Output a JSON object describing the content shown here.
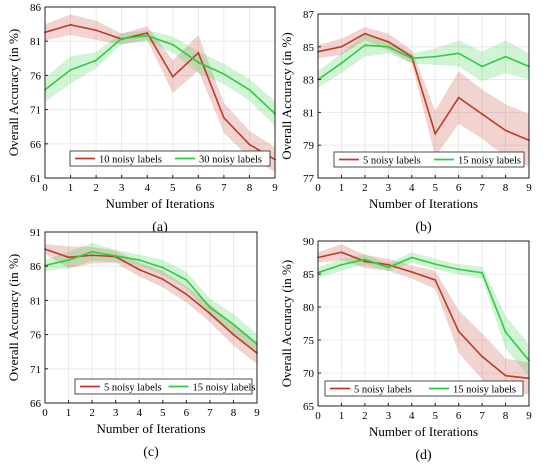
{
  "figure": {
    "ylabel": "Overall Accuracy (in %)",
    "xlabel": "Number of Iterations"
  },
  "chart_data": [
    {
      "type": "line",
      "label": "(a)",
      "xlabel": "Number of Iterations",
      "ylabel": "Overall Accuracy (in %)",
      "x": [
        0,
        1,
        2,
        3,
        4,
        5,
        6,
        7,
        8,
        9
      ],
      "xlim": [
        0,
        9
      ],
      "ylim": [
        61,
        86
      ],
      "yticks": [
        61,
        66,
        71,
        76,
        81,
        86
      ],
      "grid": true,
      "legend": "bottom",
      "series": [
        {
          "name": "10 noisy labels",
          "color": "#c0392b",
          "values": [
            82.3,
            83.4,
            82.6,
            81.3,
            82.2,
            75.8,
            79.3,
            69.8,
            65.9,
            63.7
          ],
          "band": [
            1.2,
            1.5,
            1.4,
            0.8,
            1.0,
            2.4,
            2.6,
            2.2,
            2.0,
            1.8
          ]
        },
        {
          "name": "30 noisy labels",
          "color": "#2ecc40",
          "values": [
            73.9,
            76.8,
            78.2,
            81.4,
            81.8,
            80.5,
            77.9,
            76.2,
            73.9,
            70.4
          ],
          "band": [
            1.8,
            2.0,
            1.2,
            0.8,
            0.8,
            1.2,
            1.6,
            1.5,
            1.6,
            1.8
          ]
        }
      ]
    },
    {
      "type": "line",
      "label": "(b)",
      "xlabel": "Number of Iterations",
      "ylabel": "Overall Accuracy (in %)",
      "x": [
        0,
        1,
        2,
        3,
        4,
        5,
        6,
        7,
        8,
        9
      ],
      "xlim": [
        0,
        9
      ],
      "ylim": [
        77,
        87
      ],
      "yticks": [
        77,
        79,
        81,
        83,
        85,
        87
      ],
      "grid": true,
      "legend": "bottom",
      "series": [
        {
          "name": "5 noisy labels",
          "color": "#c0392b",
          "values": [
            84.7,
            85.0,
            85.8,
            85.3,
            84.4,
            79.7,
            81.9,
            80.9,
            79.9,
            79.3
          ],
          "band": [
            0.4,
            0.5,
            0.4,
            0.5,
            0.4,
            1.4,
            1.6,
            1.5,
            1.6,
            1.6
          ]
        },
        {
          "name": "15 noisy labels",
          "color": "#2ecc40",
          "values": [
            83.0,
            84.0,
            85.1,
            85.0,
            84.3,
            84.4,
            84.6,
            83.8,
            84.4,
            83.8
          ],
          "band": [
            0.5,
            0.6,
            0.7,
            0.4,
            0.3,
            0.5,
            0.8,
            0.9,
            1.0,
            0.8
          ]
        }
      ]
    },
    {
      "type": "line",
      "label": "(c)",
      "xlabel": "Number of Iterations",
      "ylabel": "Overall Accuracy (in %)",
      "x": [
        0,
        1,
        2,
        3,
        4,
        5,
        6,
        7,
        8,
        9
      ],
      "xlim": [
        0,
        9
      ],
      "ylim": [
        66,
        91
      ],
      "yticks": [
        66,
        71,
        76,
        81,
        86,
        91
      ],
      "grid": true,
      "legend": "bottom",
      "series": [
        {
          "name": "5 noisy labels",
          "color": "#c0392b",
          "values": [
            88.5,
            87.3,
            87.6,
            87.4,
            85.5,
            84.1,
            81.9,
            79.1,
            76.0,
            73.3
          ],
          "band": [
            0.7,
            1.6,
            1.2,
            0.9,
            1.0,
            1.2,
            1.2,
            1.3,
            1.6,
            1.6
          ]
        },
        {
          "name": "15 noisy labels",
          "color": "#2ecc40",
          "values": [
            86.1,
            86.9,
            88.1,
            87.5,
            86.9,
            85.8,
            84.0,
            80.0,
            77.5,
            74.6
          ],
          "band": [
            0.8,
            1.2,
            1.3,
            0.9,
            0.8,
            1.1,
            1.2,
            1.3,
            1.5,
            1.5
          ]
        }
      ]
    },
    {
      "type": "line",
      "label": "(d)",
      "xlabel": "Number of Iterations",
      "ylabel": "Overall Accuracy (in %)",
      "x": [
        0,
        1,
        2,
        3,
        4,
        5,
        6,
        7,
        8,
        9
      ],
      "xlim": [
        0,
        9
      ],
      "ylim": [
        65,
        90
      ],
      "yticks": [
        65,
        70,
        75,
        80,
        85,
        90
      ],
      "grid": true,
      "legend": "bottom",
      "series": [
        {
          "name": "5 noisy labels",
          "color": "#c0392b",
          "values": [
            87.5,
            88.3,
            86.9,
            86.4,
            85.3,
            84.1,
            76.3,
            72.5,
            69.6,
            69.2
          ],
          "band": [
            0.8,
            1.2,
            1.0,
            0.9,
            1.0,
            1.4,
            3.2,
            3.5,
            2.6,
            2.4
          ]
        },
        {
          "name": "15 noisy labels",
          "color": "#2ecc40",
          "values": [
            85.2,
            86.4,
            87.2,
            86.0,
            87.5,
            86.5,
            85.7,
            85.2,
            76.2,
            71.9
          ],
          "band": [
            0.8,
            0.9,
            0.8,
            0.6,
            0.8,
            0.8,
            0.8,
            0.9,
            2.5,
            2.4
          ]
        }
      ]
    }
  ]
}
